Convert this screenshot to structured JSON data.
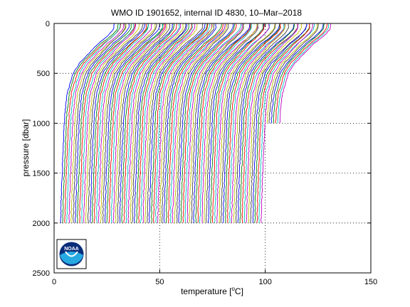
{
  "chart_data": {
    "type": "line",
    "title": "WMO ID 1901652, internal ID 4830, 10–Mar–2018",
    "xlabel": "temperature [",
    "xlabel_unit": "C]",
    "xlabel_super": "o",
    "ylabel": "pressure [dbar]",
    "xlim": [
      0,
      150
    ],
    "ylim": [
      2500,
      0
    ],
    "y_reversed": true,
    "x_ticks": [
      0,
      50,
      100,
      150
    ],
    "y_ticks": [
      0,
      500,
      1000,
      1500,
      2000,
      2500
    ],
    "grid": true,
    "grid_style": "dotted",
    "waterfall_offset": 1,
    "profile_count": 103,
    "profile_colors": [
      "#0000ff",
      "#008000",
      "#ff0000",
      "#00bfbf",
      "#bf00bf",
      "#bfbf00",
      "#404040"
    ],
    "base_profile": {
      "pressure": [
        0,
        50,
        100,
        150,
        200,
        300,
        400,
        500,
        700,
        900,
        1200,
        1500,
        1800,
        2000
      ],
      "temperature": [
        28.5,
        28.4,
        26.5,
        24.0,
        21.0,
        16.5,
        12.0,
        9.0,
        6.2,
        5.1,
        4.4,
        3.8,
        3.3,
        3.1
      ]
    },
    "short_profile_indices": [
      96,
      97,
      98,
      99,
      100,
      101,
      102
    ],
    "short_profile_max_pressure": 1000,
    "logo": {
      "text": "NOAA"
    }
  }
}
